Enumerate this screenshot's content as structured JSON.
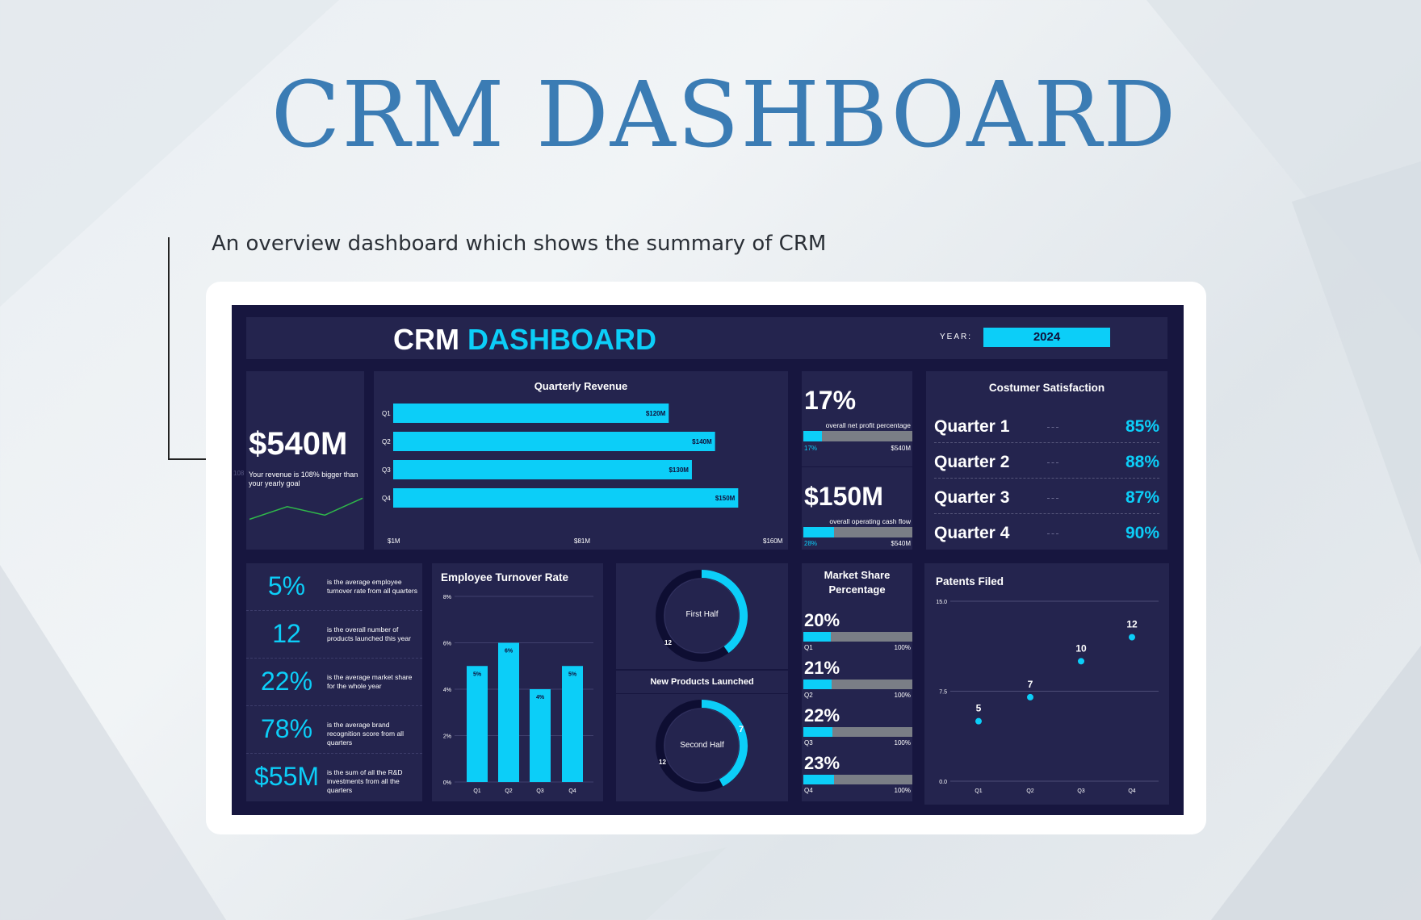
{
  "page": {
    "title": "CRM DASHBOARD",
    "subtitle": "An overview dashboard which shows the summary of CRM"
  },
  "colors": {
    "accent": "#0ccef8",
    "panel": "#24244e",
    "background": "#17163f",
    "title": "#3b7cb4",
    "grey_bar": "#7a7e86",
    "line": "#2fb84a"
  },
  "header": {
    "title_part1": "CRM",
    "title_part2": "DASHBOARD",
    "year_label": "YEAR:",
    "year_value": "2024"
  },
  "revenue": {
    "value": "$540M",
    "desc": "Your revenue is 108% bigger than your yearly goal",
    "side_label": "108"
  },
  "quarterly_revenue": {
    "title": "Quarterly Revenue",
    "axis_min": "$1M",
    "axis_mid": "$81M",
    "axis_max": "$160M"
  },
  "profit": {
    "value": "17%",
    "desc": "overall net profit percentage",
    "fill_pct": 17,
    "left_label": "17%",
    "right_label": "$540M"
  },
  "cashflow": {
    "value": "$150M",
    "desc": "overall  operating cash flow",
    "fill_pct": 28,
    "left_label": "28%",
    "right_label": "$540M"
  },
  "satisfaction": {
    "title": "Costumer Satisfaction",
    "quarters": [
      {
        "label": "Quarter 1",
        "value": "85%"
      },
      {
        "label": "Quarter 2",
        "value": "88%"
      },
      {
        "label": "Quarter 3",
        "value": "87%"
      },
      {
        "label": "Quarter 4",
        "value": "90%"
      }
    ]
  },
  "kpis": [
    {
      "value": "5%",
      "desc": "is the average employee turnover rate from all quarters"
    },
    {
      "value": "12",
      "desc": "is the overall number of products launched this year"
    },
    {
      "value": "22%",
      "desc": "is the average market share for the whole year"
    },
    {
      "value": "78%",
      "desc": "is the average brand recognition score from all quarters"
    },
    {
      "value": "$55M",
      "desc": "is the sum of all the R&D investments from all the quarters"
    }
  ],
  "turnover": {
    "title": "Employee Turnover Rate"
  },
  "products": {
    "title": "New Products Launched",
    "first_label": "First Half",
    "second_label": "Second Half",
    "first_value": "12",
    "second_value_a": "7",
    "second_value_b": "12"
  },
  "market_share": {
    "title_line1": "Market Share",
    "title_line2": "Percentage",
    "items": [
      {
        "value": "20%",
        "pct": 20,
        "q": "Q1",
        "max": "100%"
      },
      {
        "value": "21%",
        "pct": 21,
        "q": "Q2",
        "max": "100%"
      },
      {
        "value": "22%",
        "pct": 22,
        "q": "Q3",
        "max": "100%"
      },
      {
        "value": "23%",
        "pct": 23,
        "q": "Q4",
        "max": "100%"
      }
    ]
  },
  "patents": {
    "title": "Patents Filed"
  },
  "chart_data": [
    {
      "type": "bar",
      "orientation": "horizontal",
      "title": "Quarterly Revenue",
      "categories": [
        "Q1",
        "Q2",
        "Q3",
        "Q4"
      ],
      "values": [
        120,
        140,
        130,
        150
      ],
      "labels": [
        "$120M",
        "$140M",
        "$130M",
        "$150M"
      ],
      "xlim": [
        1,
        160
      ],
      "xticks": [
        "$1M",
        "$81M",
        "$160M"
      ]
    },
    {
      "type": "bar",
      "title": "Employee Turnover Rate",
      "categories": [
        "Q1",
        "Q2",
        "Q3",
        "Q4"
      ],
      "values": [
        5,
        6,
        4,
        5
      ],
      "labels": [
        "5%",
        "6%",
        "4%",
        "5%"
      ],
      "ylim": [
        0,
        8
      ],
      "yticks": [
        "0%",
        "2%",
        "4%",
        "6%",
        "8%"
      ]
    },
    {
      "type": "scatter",
      "title": "Patents Filed",
      "categories": [
        "Q1",
        "Q2",
        "Q3",
        "Q4"
      ],
      "values": [
        5,
        7,
        10,
        12
      ],
      "labels": [
        "5",
        "7",
        "10",
        "12"
      ],
      "ylim": [
        0,
        15
      ],
      "yticks": [
        "0.0",
        "7.5",
        "15.0"
      ]
    },
    {
      "type": "pie",
      "title": "New Products Launched - First Half",
      "values": [
        12,
        8
      ]
    },
    {
      "type": "pie",
      "title": "New Products Launched - Second Half",
      "values": [
        7,
        12
      ]
    },
    {
      "type": "line",
      "title": "Revenue trend",
      "values": [
        2,
        5,
        3,
        7
      ]
    }
  ]
}
